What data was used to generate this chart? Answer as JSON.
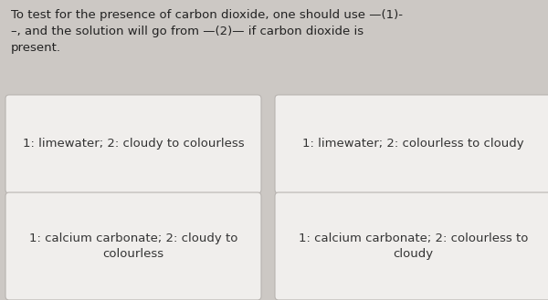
{
  "background_color": "#ccc8c4",
  "card_color": "#f0eeec",
  "card_border_color": "#b8b4b0",
  "title_text": "To test for the presence of carbon dioxide, one should use —(1)-\n–, and the solution will go from —(2)— if carbon dioxide is\npresent.",
  "title_fontsize": 9.5,
  "title_color": "#222222",
  "options": [
    {
      "text": "1: limewater; 2: cloudy to colourless",
      "row": 0,
      "col": 0
    },
    {
      "text": "1: limewater; 2: colourless to cloudy",
      "row": 0,
      "col": 1
    },
    {
      "text": "1: calcium carbonate; 2: cloudy to\ncolourless",
      "row": 1,
      "col": 0
    },
    {
      "text": "1: calcium carbonate; 2: colourless to\ncloudy",
      "row": 1,
      "col": 1
    }
  ],
  "card_fontsize": 9.5,
  "card_text_color": "#333333"
}
